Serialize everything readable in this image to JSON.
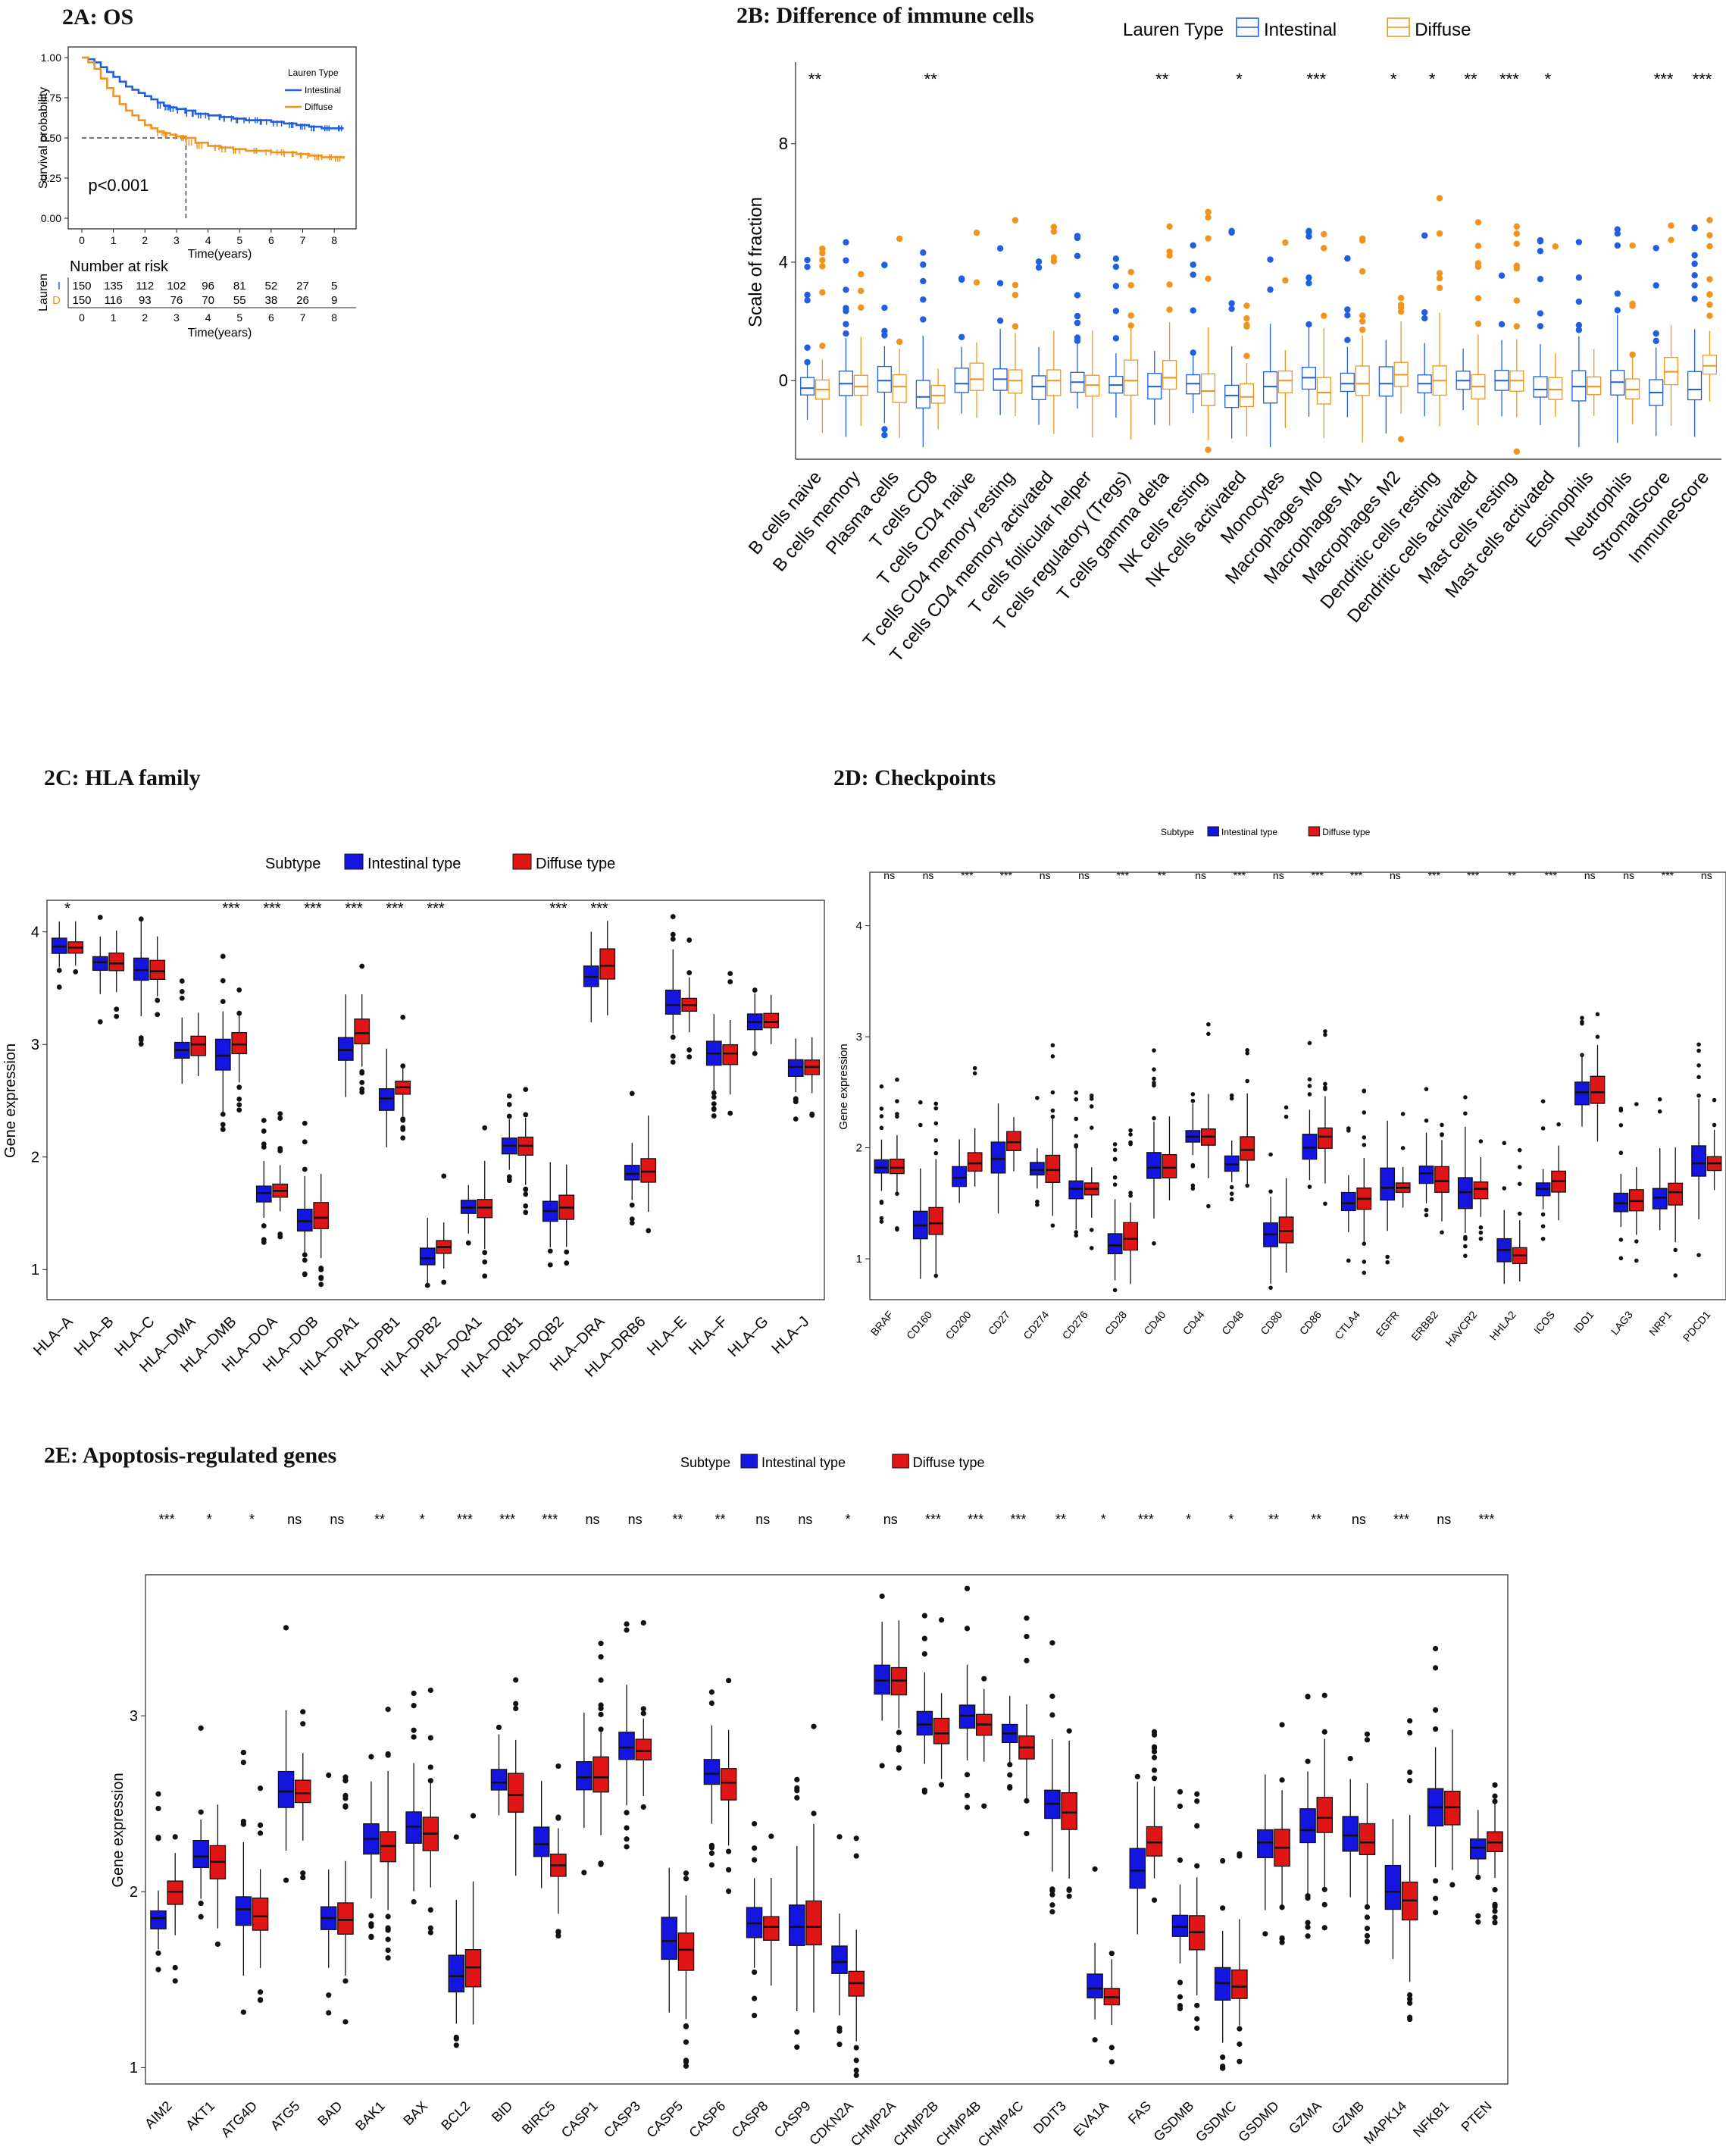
{
  "charts": [
    {
      "id": "2A",
      "type": "line",
      "title": "2A: OS",
      "xlabel": "Time(years)",
      "ylabel": "Survival probability",
      "xlim": [
        0,
        8.5
      ],
      "ylim": [
        0,
        1
      ],
      "xticks": [
        "0",
        "1",
        "2",
        "3",
        "4",
        "5",
        "6",
        "7",
        "8"
      ],
      "yticks": [
        "0.00",
        "0.25",
        "0.50",
        "0.75",
        "1.00"
      ],
      "legend_title": "Lauren Type",
      "pvalue": "p<0.001",
      "median_time": 3.3,
      "series": [
        {
          "name": "Intestinal",
          "color": "#1f5fe0",
          "x": [
            0,
            0.2,
            0.4,
            0.6,
            0.8,
            1.0,
            1.2,
            1.4,
            1.6,
            1.8,
            2.0,
            2.2,
            2.4,
            2.6,
            2.8,
            3.0,
            3.3,
            3.6,
            4.0,
            4.4,
            4.8,
            5.2,
            5.6,
            6.0,
            6.4,
            6.8,
            7.2,
            7.6,
            8.0,
            8.3
          ],
          "y": [
            1.0,
            0.99,
            0.97,
            0.94,
            0.91,
            0.88,
            0.85,
            0.82,
            0.8,
            0.78,
            0.76,
            0.74,
            0.72,
            0.7,
            0.69,
            0.68,
            0.67,
            0.65,
            0.64,
            0.63,
            0.62,
            0.61,
            0.61,
            0.6,
            0.59,
            0.58,
            0.57,
            0.56,
            0.56,
            0.56
          ]
        },
        {
          "name": "Diffuse",
          "color": "#f0941e",
          "x": [
            0,
            0.2,
            0.4,
            0.6,
            0.8,
            1.0,
            1.2,
            1.4,
            1.6,
            1.8,
            2.0,
            2.2,
            2.4,
            2.6,
            2.8,
            3.0,
            3.3,
            3.6,
            4.0,
            4.4,
            4.8,
            5.2,
            5.6,
            6.0,
            6.4,
            6.8,
            7.2,
            7.6,
            8.0,
            8.3
          ],
          "y": [
            1.0,
            0.97,
            0.93,
            0.87,
            0.81,
            0.76,
            0.71,
            0.67,
            0.64,
            0.61,
            0.58,
            0.56,
            0.54,
            0.53,
            0.52,
            0.51,
            0.5,
            0.47,
            0.45,
            0.44,
            0.43,
            0.42,
            0.42,
            0.41,
            0.41,
            0.4,
            0.39,
            0.38,
            0.38,
            0.37
          ]
        }
      ],
      "risk_table": {
        "title": "Number at risk",
        "ylabel": "Lauren",
        "rows": [
          {
            "label": "I",
            "color": "#1f5fe0",
            "values": [
              "150",
              "135",
              "112",
              "102",
              "96",
              "81",
              "52",
              "27",
              "5"
            ]
          },
          {
            "label": "D",
            "color": "#f0941e",
            "values": [
              "150",
              "116",
              "93",
              "76",
              "70",
              "55",
              "38",
              "26",
              "9"
            ]
          }
        ]
      }
    },
    {
      "id": "2B",
      "type": "boxplot",
      "title": "2B: Difference of immune cells",
      "ylabel": "Scale of fraction",
      "legend_title": "Lauren Type",
      "ylim": [
        -2.5,
        10.5
      ],
      "yticks": [
        "0",
        "4",
        "8"
      ],
      "series": [
        {
          "name": "Intestinal",
          "color": "#1f5fe0"
        },
        {
          "name": "Diffuse",
          "color": "#f0941e"
        }
      ],
      "categories": [
        "B cells naive",
        "B cells memory",
        "Plasma cells",
        "T cells CD8",
        "T cells CD4 naive",
        "T cells CD4 memory resting",
        "T cells CD4 memory activated",
        "T cells follicular helper",
        "T cells regulatory (Tregs)",
        "T cells gamma delta",
        "NK cells resting",
        "NK cells activated",
        "Monocytes",
        "Macrophages M0",
        "Macrophages M1",
        "Macrophages M2",
        "Dendritic cells resting",
        "Dendritic cells activated",
        "Mast cells resting",
        "Mast cells activated",
        "Eosinophils",
        "Neutrophils",
        "StromalScore",
        "ImmuneScore"
      ],
      "significance": [
        "**",
        "",
        "",
        "**",
        "",
        "",
        "",
        "",
        "",
        "**",
        "",
        "*",
        "",
        "***",
        "",
        "*",
        "*",
        "**",
        "***",
        "*",
        "",
        "",
        "***",
        "***"
      ],
      "medians": [
        [
          -0.25,
          -0.3
        ],
        [
          -0.1,
          -0.2
        ],
        [
          0.0,
          -0.2
        ],
        [
          -0.55,
          -0.5
        ],
        [
          -0.1,
          0.05
        ],
        [
          0.05,
          0.0
        ],
        [
          -0.2,
          0.0
        ],
        [
          -0.05,
          -0.15
        ],
        [
          -0.15,
          0.0
        ],
        [
          -0.2,
          0.1
        ],
        [
          -0.1,
          -0.35
        ],
        [
          -0.5,
          -0.55
        ],
        [
          -0.2,
          0.0
        ],
        [
          0.1,
          -0.4
        ],
        [
          -0.1,
          -0.1
        ],
        [
          -0.1,
          0.2
        ],
        [
          -0.1,
          0.0
        ],
        [
          0.0,
          -0.2
        ],
        [
          0.0,
          0.0
        ],
        [
          -0.3,
          -0.3
        ],
        [
          -0.2,
          -0.2
        ],
        [
          -0.05,
          -0.3
        ],
        [
          -0.4,
          0.3
        ],
        [
          -0.3,
          0.5
        ]
      ]
    },
    {
      "id": "2C",
      "type": "boxplot",
      "title": "2C: HLA family",
      "ylabel": "Gene expression",
      "legend_title": "Subtype",
      "ylim": [
        0.8,
        4.2
      ],
      "yticks": [
        "1",
        "2",
        "3",
        "4"
      ],
      "series": [
        {
          "name": "Intestinal type",
          "color": "#1515e0"
        },
        {
          "name": "Diffuse type",
          "color": "#e01515"
        }
      ],
      "categories": [
        "HLA–A",
        "HLA–B",
        "HLA–C",
        "HLA–DMA",
        "HLA–DMB",
        "HLA–DOA",
        "HLA–DOB",
        "HLA–DPA1",
        "HLA–DPB1",
        "HLA–DPB2",
        "HLA–DQA1",
        "HLA–DQB1",
        "HLA–DQB2",
        "HLA–DRA",
        "HLA–DRB6",
        "HLA–E",
        "HLA–F",
        "HLA–G",
        "HLA–J"
      ],
      "significance": [
        "*",
        "",
        "",
        "",
        "***",
        "***",
        "***",
        "***",
        "***",
        "***",
        "",
        "",
        "***",
        "***",
        "",
        "",
        "",
        "",
        ""
      ],
      "medians": [
        [
          3.87,
          3.86
        ],
        [
          3.73,
          3.72
        ],
        [
          3.66,
          3.65
        ],
        [
          2.95,
          3.0
        ],
        [
          2.9,
          3.0
        ],
        [
          1.68,
          1.7
        ],
        [
          1.43,
          1.46
        ],
        [
          2.95,
          3.1
        ],
        [
          2.52,
          2.62
        ],
        [
          1.1,
          1.2
        ],
        [
          1.55,
          1.55
        ],
        [
          2.1,
          2.1
        ],
        [
          1.52,
          1.55
        ],
        [
          3.6,
          3.7
        ],
        [
          1.85,
          1.87
        ],
        [
          3.35,
          3.35
        ],
        [
          2.92,
          2.92
        ],
        [
          3.2,
          3.2
        ],
        [
          2.8,
          2.8
        ]
      ]
    },
    {
      "id": "2D",
      "type": "boxplot",
      "title": "2D: Checkpoints",
      "ylabel": "Gene expression",
      "legend_title": "Subtype",
      "ylim": [
        0.7,
        4.4
      ],
      "yticks": [
        "1",
        "2",
        "3",
        "4"
      ],
      "series": [
        {
          "name": "Intestinal type",
          "color": "#1515e0"
        },
        {
          "name": "Diffuse type",
          "color": "#e01515"
        }
      ],
      "categories": [
        "BRAF",
        "CD160",
        "CD200",
        "CD27",
        "CD274",
        "CD276",
        "CD28",
        "CD40",
        "CD44",
        "CD48",
        "CD80",
        "CD86",
        "CTLA4",
        "EGFR",
        "ERBB2",
        "HAVCR2",
        "HHLA2",
        "ICOS",
        "IDO1",
        "LAG3",
        "NRP1",
        "PDCD1"
      ],
      "significance": [
        "ns",
        "ns",
        "***",
        "***",
        "ns",
        "ns",
        "***",
        "**",
        "ns",
        "***",
        "ns",
        "***",
        "***",
        "ns",
        "***",
        "***",
        "**",
        "***",
        "ns",
        "ns",
        "***",
        "ns"
      ],
      "medians": [
        [
          1.82,
          1.82
        ],
        [
          1.3,
          1.32
        ],
        [
          1.73,
          1.86
        ],
        [
          1.9,
          2.05
        ],
        [
          1.8,
          1.8
        ],
        [
          1.63,
          1.63
        ],
        [
          1.12,
          1.18
        ],
        [
          1.82,
          1.82
        ],
        [
          2.1,
          2.1
        ],
        [
          1.85,
          1.98
        ],
        [
          1.22,
          1.25
        ],
        [
          2.0,
          2.1
        ],
        [
          1.5,
          1.54
        ],
        [
          1.64,
          1.64
        ],
        [
          1.77,
          1.7
        ],
        [
          1.6,
          1.63
        ],
        [
          1.08,
          1.03
        ],
        [
          1.63,
          1.7
        ],
        [
          2.5,
          2.5
        ],
        [
          1.5,
          1.52
        ],
        [
          1.55,
          1.6
        ],
        [
          1.86,
          1.86
        ]
      ]
    },
    {
      "id": "2E",
      "type": "boxplot",
      "title": "2E: Apoptosis-regulated genes",
      "ylabel": "Gene expression",
      "legend_title": "Subtype",
      "ylim": [
        0.95,
        3.75
      ],
      "yticks": [
        "1",
        "2",
        "3"
      ],
      "series": [
        {
          "name": "Intestinal type",
          "color": "#1515e0"
        },
        {
          "name": "Diffuse type",
          "color": "#e01515"
        }
      ],
      "categories": [
        "AIM2",
        "AKT1",
        "ATG4D",
        "ATG5",
        "BAD",
        "BAK1",
        "BAX",
        "BCL2",
        "BID",
        "BIRC5",
        "CASP1",
        "CASP3",
        "CASP5",
        "CASP6",
        "CASP8",
        "CASP9",
        "CDKN2A",
        "CHMP2A",
        "CHMP2B",
        "CHMP4B",
        "CHMP4C",
        "DDIT3",
        "EVA1A",
        "FAS",
        "GSDMB",
        "GSDMC",
        "GSDMD",
        "GZMA",
        "GZMB",
        "MAPK14",
        "NFKB1",
        "PTEN"
      ],
      "significance": [
        "***",
        "*",
        "*",
        "ns",
        "ns",
        "**",
        "*",
        "***",
        "***",
        "***",
        "ns",
        "ns",
        "**",
        "**",
        "ns",
        "ns",
        "*",
        "ns",
        "***",
        "***",
        "***",
        "**",
        "*",
        "***",
        "*",
        "*",
        "**",
        "**",
        "ns",
        "***",
        "ns",
        "***"
      ],
      "medians": [
        [
          1.85,
          2.0
        ],
        [
          2.2,
          2.17
        ],
        [
          1.9,
          1.86
        ],
        [
          2.57,
          2.56
        ],
        [
          1.85,
          1.84
        ],
        [
          2.3,
          2.26
        ],
        [
          2.37,
          2.33
        ],
        [
          1.52,
          1.57
        ],
        [
          2.62,
          2.55
        ],
        [
          2.27,
          2.15
        ],
        [
          2.65,
          2.65
        ],
        [
          2.82,
          2.8
        ],
        [
          1.72,
          1.67
        ],
        [
          2.67,
          2.62
        ],
        [
          1.82,
          1.8
        ],
        [
          1.8,
          1.8
        ],
        [
          1.6,
          1.48
        ],
        [
          3.2,
          3.2
        ],
        [
          2.95,
          2.9
        ],
        [
          3.0,
          2.95
        ],
        [
          2.9,
          2.82
        ],
        [
          2.5,
          2.45
        ],
        [
          1.45,
          1.4
        ],
        [
          2.12,
          2.28
        ],
        [
          1.8,
          1.77
        ],
        [
          1.48,
          1.46
        ],
        [
          2.28,
          2.25
        ],
        [
          2.35,
          2.42
        ],
        [
          2.32,
          2.28
        ],
        [
          2.0,
          1.95
        ],
        [
          2.48,
          2.48
        ],
        [
          2.25,
          2.28
        ]
      ]
    }
  ]
}
